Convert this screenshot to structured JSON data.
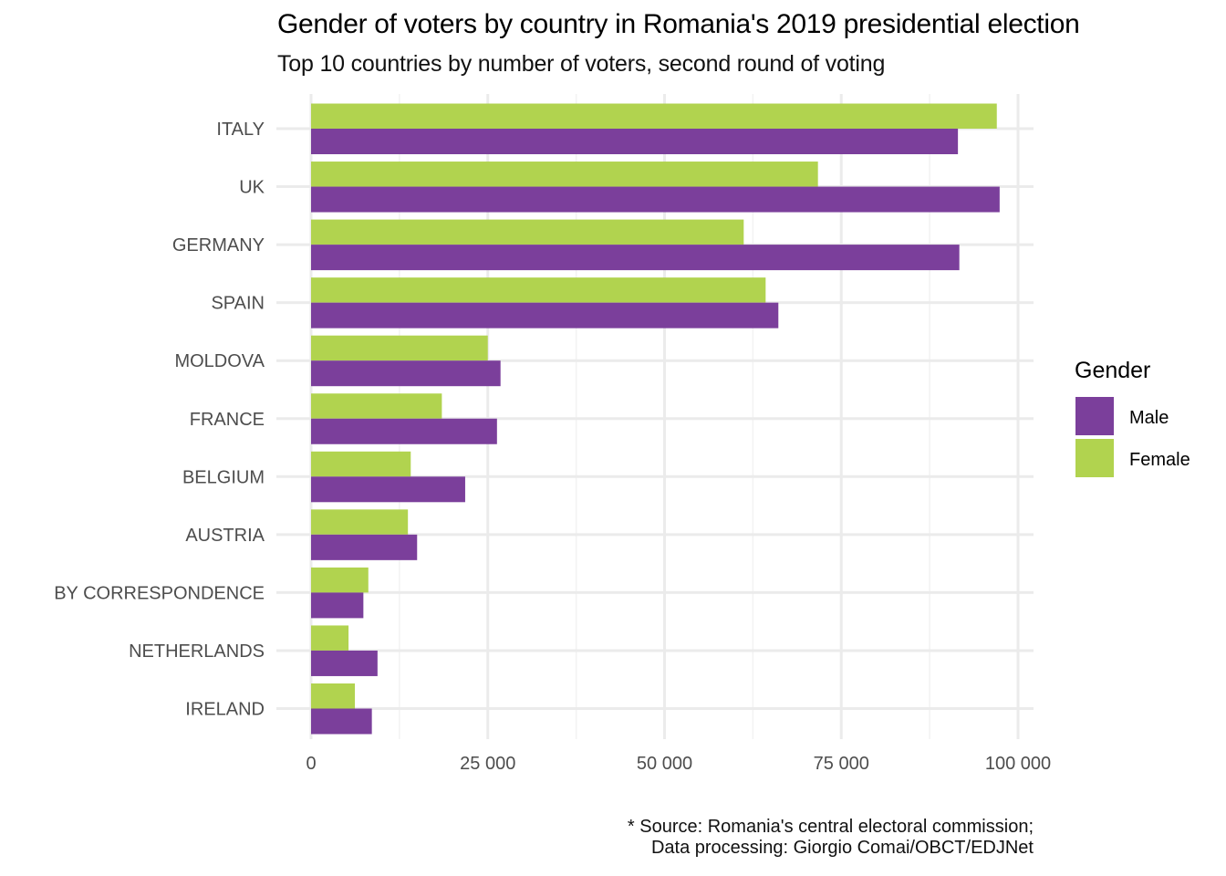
{
  "chart_data": {
    "type": "bar",
    "orientation": "horizontal",
    "title": "Gender of voters by country in Romania's 2019 presidential election",
    "subtitle": "Top 10 countries by number of voters, second round of voting",
    "caption_lines": [
      "* Source: Romania's central electoral commission;",
      "Data processing: Giorgio Comai/OBCT/EDJNet"
    ],
    "xlabel": "",
    "ylabel": "",
    "xlim": [
      0,
      100000
    ],
    "xticks": [
      0,
      25000,
      50000,
      75000,
      100000
    ],
    "xtick_labels": [
      "0",
      "25 000",
      "50 000",
      "75 000",
      "100 000"
    ],
    "grid": true,
    "legend": {
      "title": "Gender",
      "position": "right"
    },
    "categories": [
      "ITALY",
      "UK",
      "GERMANY",
      "SPAIN",
      "MOLDOVA",
      "FRANCE",
      "BELGIUM",
      "AUSTRIA",
      "BY CORRESPONDENCE",
      "NETHERLANDS",
      "IRELAND"
    ],
    "series": [
      {
        "name": "Male",
        "color": "#7b3f9b",
        "values": [
          91500,
          97400,
          91700,
          66100,
          26800,
          26300,
          21800,
          15000,
          7400,
          9400,
          8600
        ]
      },
      {
        "name": "Female",
        "color": "#b1d34f",
        "values": [
          97000,
          71700,
          61200,
          64300,
          25000,
          18500,
          14100,
          13700,
          8100,
          5300,
          6200
        ]
      }
    ]
  }
}
